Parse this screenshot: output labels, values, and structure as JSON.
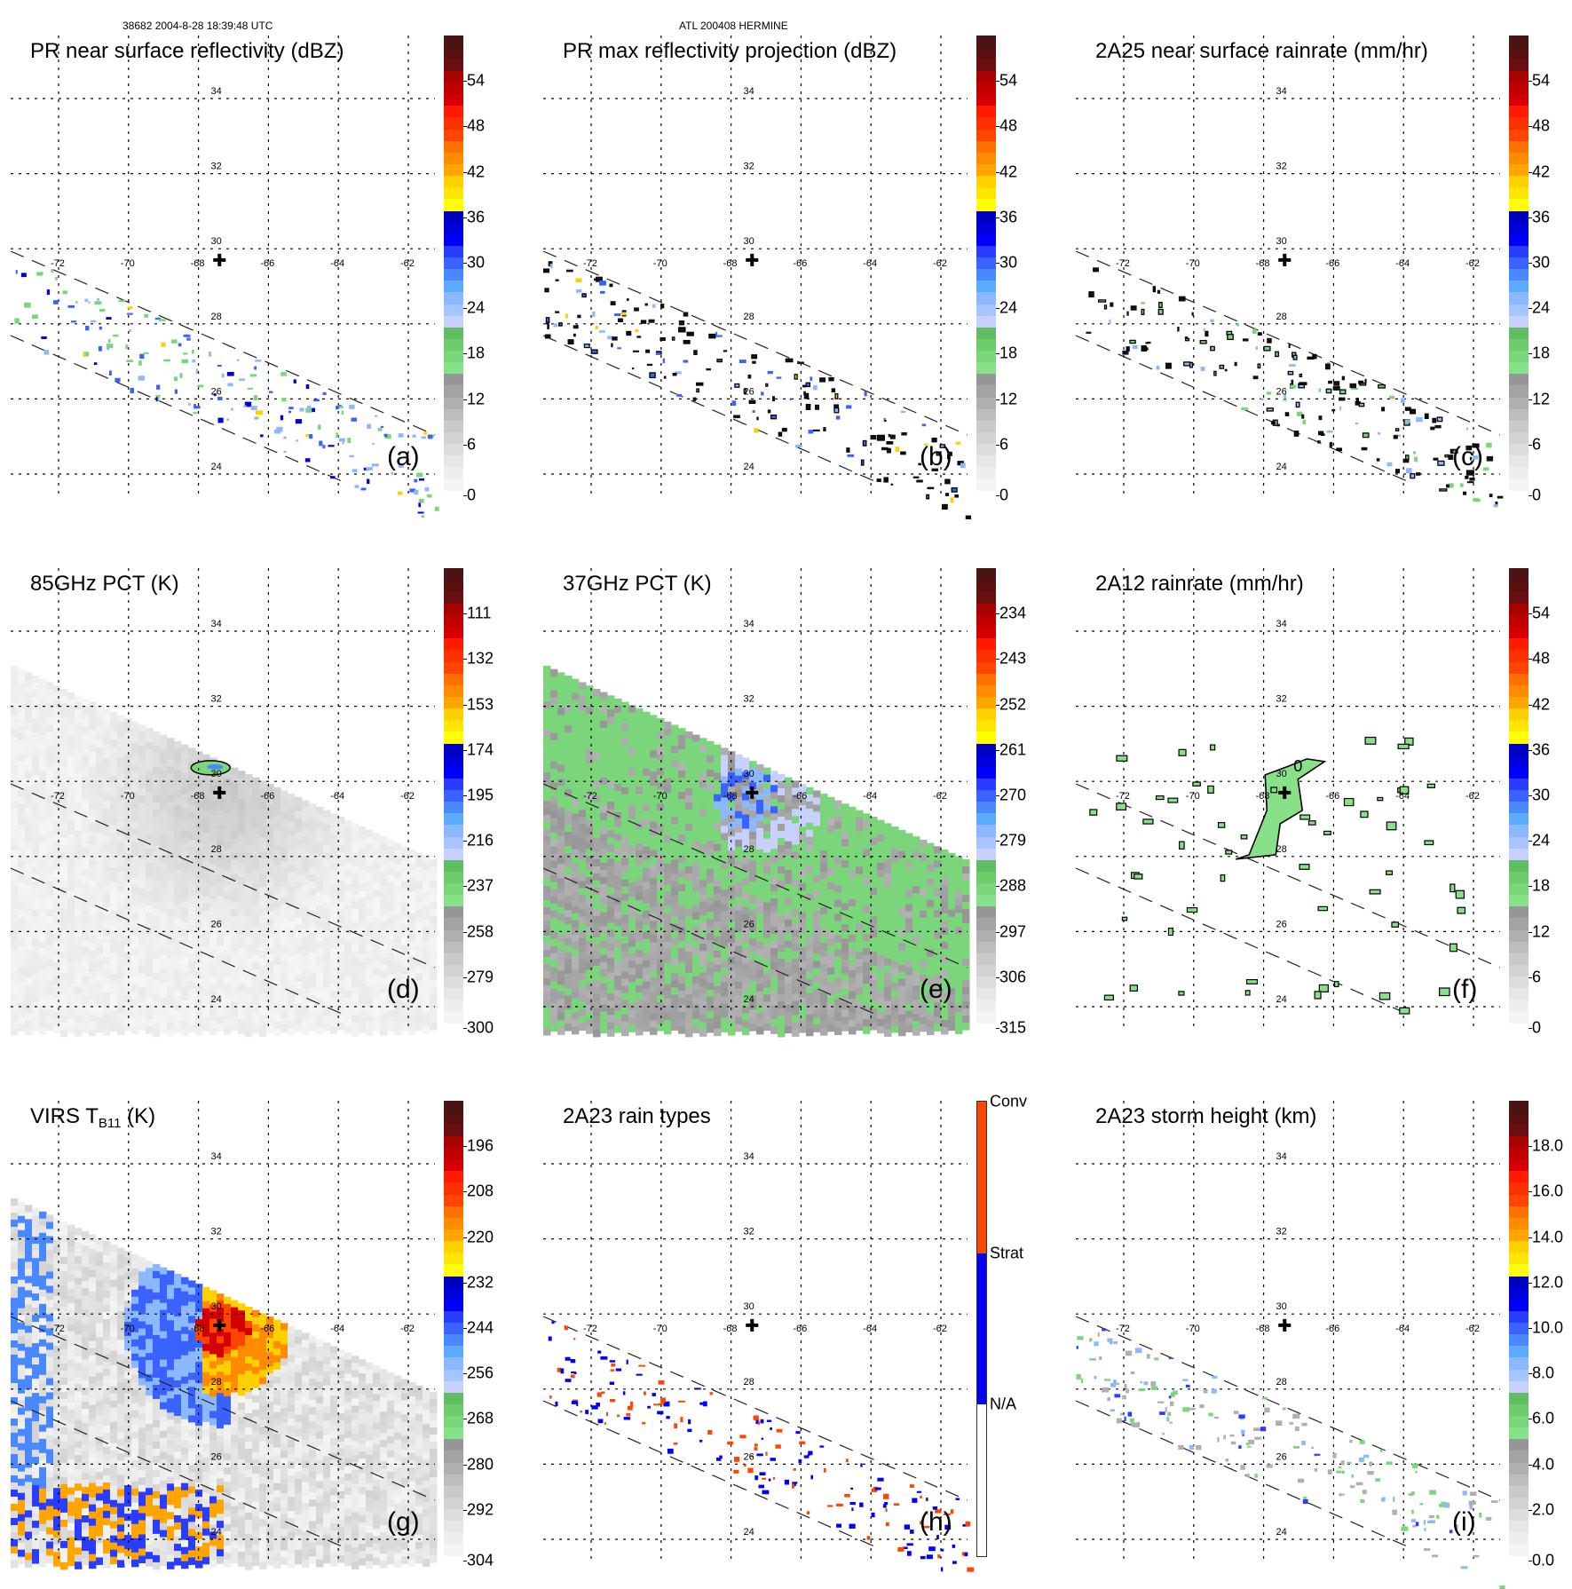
{
  "header": {
    "left": "38682 2004-8-28 18:39:48 UTC",
    "center": "ATL 200408 HERMINE"
  },
  "map_grid": {
    "lon_labels": [
      "-72",
      "-70",
      "-68",
      "-66",
      "-64",
      "-62"
    ],
    "lat_labels": [
      "34",
      "32",
      "30",
      "28",
      "26",
      "24"
    ],
    "storm_center": {
      "lon": -67.4,
      "lat": 29.7,
      "marker": "cross-icon"
    }
  },
  "standard_palette": [
    "#f5f5f5",
    "#eeeeee",
    "#e6e6e6",
    "#dddddd",
    "#d3d3d3",
    "#c9c9c9",
    "#bdbdbd",
    "#b0b0b0",
    "#a3a3a3",
    "#969696",
    "#88e088",
    "#7bd67b",
    "#6ccc6c",
    "#62bd62",
    "#c8d0ff",
    "#a8c4ff",
    "#8cb8ff",
    "#5aaaff",
    "#4a88ff",
    "#3a62ff",
    "#2a3cff",
    "#0000ff",
    "#0000dd",
    "#0000c0",
    "#ffff00",
    "#ffe600",
    "#ffd000",
    "#ffa500",
    "#ff8c00",
    "#ff7000",
    "#ff4500",
    "#ff3000",
    "#ff1a00",
    "#d40000",
    "#c00000",
    "#aa0000",
    "#6a0f0f",
    "#5a1010",
    "#4a1414"
  ],
  "panels": [
    {
      "id": "a",
      "title": "PR near surface reflectivity (dBZ)",
      "letter": "(a)",
      "style": "pr",
      "colorbar": {
        "ticks": [
          "0",
          "6",
          "12",
          "18",
          "24",
          "30",
          "36",
          "42",
          "48",
          "54"
        ],
        "range": [
          0,
          60
        ]
      }
    },
    {
      "id": "b",
      "title": "PR max reflectivity projection (dBZ)",
      "letter": "(b)",
      "style": "prmax",
      "colorbar": {
        "ticks": [
          "0",
          "6",
          "12",
          "18",
          "24",
          "30",
          "36",
          "42",
          "48",
          "54"
        ],
        "range": [
          0,
          60
        ]
      }
    },
    {
      "id": "c",
      "title": "2A25 near surface rainrate (mm/hr)",
      "letter": "(c)",
      "style": "rain25",
      "colorbar": {
        "ticks": [
          "0",
          "6",
          "12",
          "18",
          "24",
          "30",
          "36",
          "42",
          "48",
          "54"
        ],
        "range": [
          0,
          60
        ]
      }
    },
    {
      "id": "d",
      "title": "85GHz PCT (K)",
      "letter": "(d)",
      "style": "pct85",
      "colorbar": {
        "ticks": [
          "300",
          "279",
          "258",
          "237",
          "216",
          "195",
          "174",
          "153",
          "132",
          "111"
        ],
        "range": [
          300,
          90
        ]
      }
    },
    {
      "id": "e",
      "title": "37GHz PCT (K)",
      "letter": "(e)",
      "style": "pct37",
      "colorbar": {
        "ticks": [
          "315",
          "306",
          "297",
          "288",
          "279",
          "270",
          "261",
          "252",
          "243",
          "234"
        ],
        "range": [
          315,
          225
        ]
      }
    },
    {
      "id": "f",
      "title": "2A12 rainrate (mm/hr)",
      "letter": "(f)",
      "style": "rain12",
      "colorbar": {
        "ticks": [
          "0",
          "6",
          "12",
          "18",
          "24",
          "30",
          "36",
          "42",
          "48",
          "54"
        ],
        "range": [
          0,
          60
        ]
      },
      "contour_label": "0"
    },
    {
      "id": "g",
      "title": "VIRS T",
      "title_sub": "B11",
      "title_suffix": " (K)",
      "letter": "(g)",
      "style": "virs",
      "colorbar": {
        "ticks": [
          "304",
          "292",
          "280",
          "268",
          "256",
          "244",
          "232",
          "220",
          "208",
          "196"
        ],
        "range": [
          304,
          184
        ]
      }
    },
    {
      "id": "h",
      "title": "2A23 rain types",
      "letter": "(h)",
      "style": "types",
      "colorbar": {
        "categorical": true,
        "labels": [
          "N/A",
          "Strat",
          "Conv"
        ],
        "colors": [
          "#ffffff",
          "#0000ff",
          "#ff4500"
        ]
      }
    },
    {
      "id": "i",
      "title": "2A23 storm height (km)",
      "letter": "(i)",
      "style": "height",
      "colorbar": {
        "ticks": [
          "0.0",
          "2.0",
          "4.0",
          "6.0",
          "8.0",
          "10.0",
          "12.0",
          "14.0",
          "16.0",
          "18.0"
        ],
        "range": [
          0,
          20
        ]
      }
    }
  ]
}
